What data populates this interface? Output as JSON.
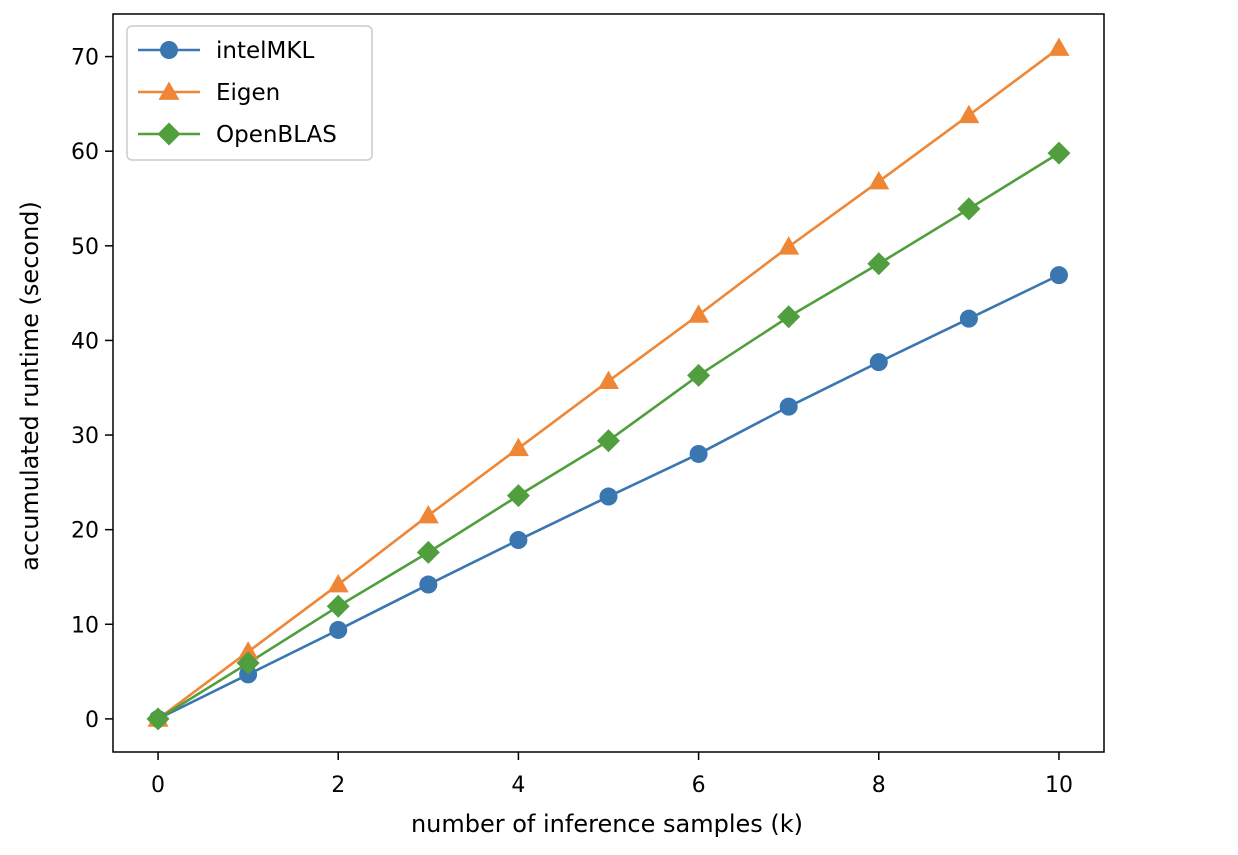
{
  "chart_data": {
    "type": "line",
    "title": "",
    "xlabel": "number of inference samples (k)",
    "ylabel": "accumulated runtime (second)",
    "xlim": [
      -0.5,
      10.5
    ],
    "ylim": [
      -3.5,
      74.5
    ],
    "xticks": [
      0,
      2,
      4,
      6,
      8,
      10
    ],
    "yticks": [
      0,
      10,
      20,
      30,
      40,
      50,
      60,
      70
    ],
    "grid": false,
    "legend_position": "upper-left",
    "x": [
      0,
      1,
      2,
      3,
      4,
      5,
      6,
      7,
      8,
      9,
      10
    ],
    "series": [
      {
        "name": "intelMKL",
        "color": "#3a76af",
        "marker": "circle",
        "values": [
          0,
          4.7,
          9.4,
          14.2,
          18.9,
          23.5,
          28.0,
          33.0,
          37.7,
          42.3,
          46.9
        ]
      },
      {
        "name": "Eigen",
        "color": "#ef8636",
        "marker": "triangle",
        "values": [
          0,
          7.1,
          14.2,
          21.5,
          28.6,
          35.7,
          42.7,
          49.9,
          56.8,
          63.8,
          70.9
        ]
      },
      {
        "name": "OpenBLAS",
        "color": "#519e3e",
        "marker": "diamond",
        "values": [
          0,
          5.9,
          11.9,
          17.6,
          23.6,
          29.4,
          36.3,
          42.5,
          48.1,
          53.9,
          59.8
        ]
      }
    ]
  }
}
